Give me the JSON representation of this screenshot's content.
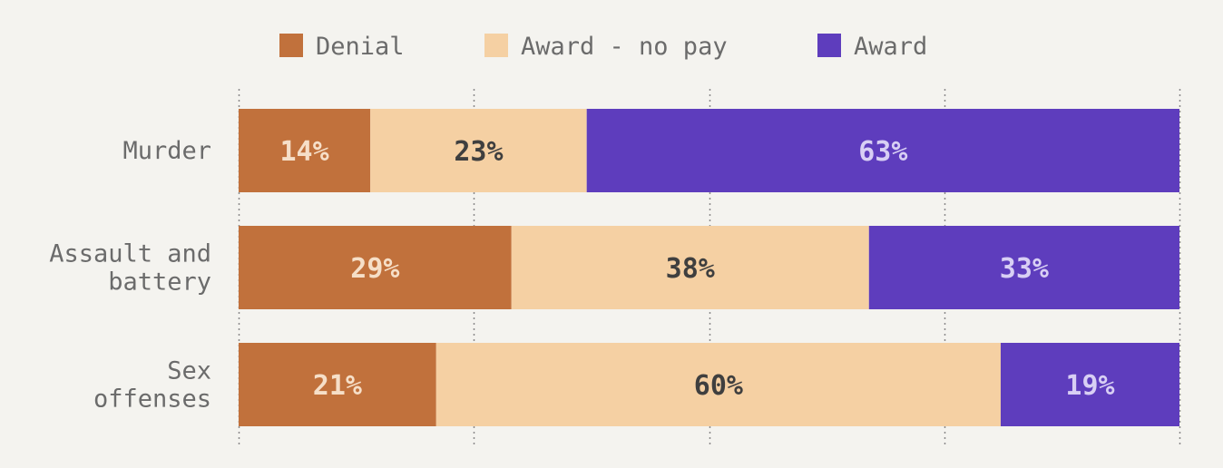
{
  "chart_data": {
    "type": "bar",
    "orientation": "horizontal",
    "stacked": true,
    "normalized_percent": true,
    "categories": [
      [
        "Murder"
      ],
      [
        "Assault and",
        "battery"
      ],
      [
        "Sex",
        "offenses"
      ]
    ],
    "series": [
      {
        "name": "Denial",
        "values": [
          14,
          29,
          21
        ],
        "labels": [
          "14%",
          "29%",
          "21%"
        ],
        "color": "#c1713c",
        "label_color": "#f6dfc8"
      },
      {
        "name": "Award - no pay",
        "values": [
          23,
          38,
          60
        ],
        "labels": [
          "23%",
          "38%",
          "60%"
        ],
        "color": "#f5d0a3",
        "label_color": "#3f3f3f"
      },
      {
        "name": "Award",
        "values": [
          63,
          33,
          19
        ],
        "labels": [
          "63%",
          "33%",
          "19%"
        ],
        "color": "#5e3dbd",
        "label_color": "#d8cff4"
      }
    ],
    "xlim": [
      0,
      100
    ],
    "gridlines": [
      0,
      25,
      50,
      75,
      100
    ],
    "grid": true,
    "grid_style": "dotted",
    "legend": "top",
    "title": "",
    "xlabel": "",
    "ylabel": ""
  },
  "colors": {
    "background": "#f4f3ef",
    "text": "#6b6b6b",
    "grid": "#8a8a8a"
  }
}
